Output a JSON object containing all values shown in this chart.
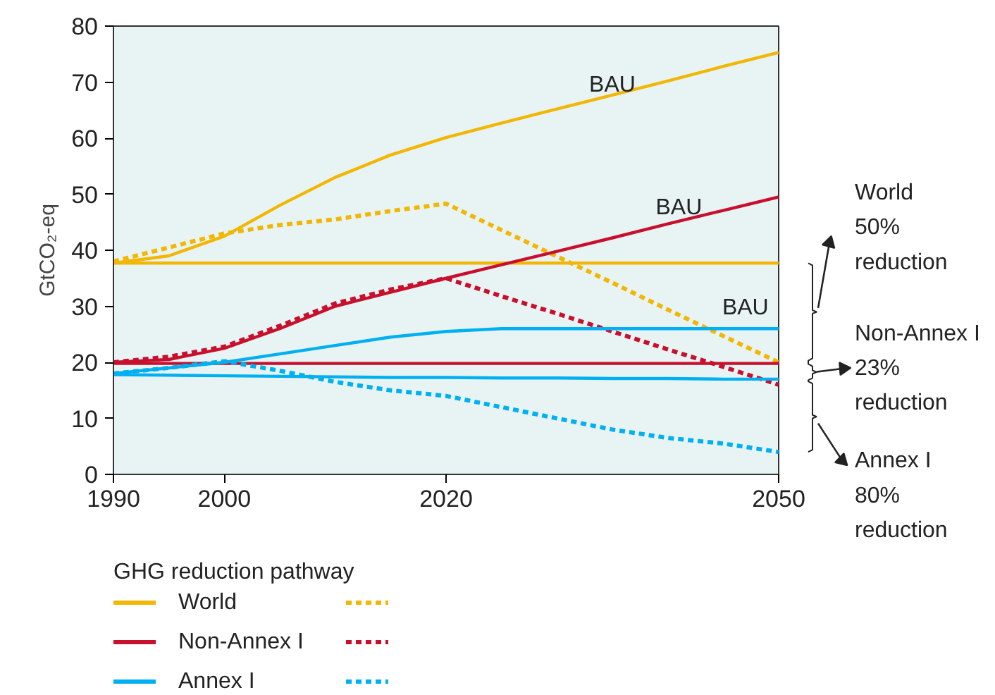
{
  "chart_data": {
    "type": "line",
    "ylabel": "GtCO₂-eq",
    "legend_title": "GHG reduction pathway",
    "legend": "bottom",
    "grid": false,
    "x": [
      1990,
      1995,
      2000,
      2005,
      2010,
      2015,
      2020,
      2025,
      2030,
      2035,
      2040,
      2045,
      2050
    ],
    "xlim": [
      1990,
      2050
    ],
    "xticks": [
      1990,
      2000,
      2020,
      2050
    ],
    "ylim": [
      0,
      80
    ],
    "yticks": [
      0,
      10,
      20,
      30,
      40,
      50,
      60,
      70,
      80
    ],
    "series": [
      {
        "name": "World",
        "color": "#f2b705",
        "line_style": "solid",
        "values": [
          37.7,
          39,
          42.5,
          48,
          53,
          57,
          60.1,
          62.7,
          65.2,
          67.7,
          70.2,
          72.8,
          75.3
        ]
      },
      {
        "color": "#f2b705",
        "line_style": "dashed",
        "values": [
          38,
          40.5,
          43,
          44.5,
          45.5,
          47,
          48.3,
          43.6,
          38.9,
          34.2,
          29.4,
          24.7,
          20
        ]
      },
      {
        "color": "#f2b705",
        "line_style": "solid",
        "values": [
          37.7,
          37.7,
          37.7,
          37.7,
          37.7,
          37.7,
          37.7,
          37.7,
          37.7,
          37.7,
          37.7,
          37.7,
          37.7
        ]
      },
      {
        "name": "Non-Annex I",
        "color": "#c8102e",
        "line_style": "solid",
        "values": [
          20,
          20.5,
          22.5,
          26,
          30,
          32.5,
          35,
          37.4,
          39.8,
          42.2,
          44.7,
          47.1,
          49.5
        ]
      },
      {
        "color": "#c8102e",
        "line_style": "dashed",
        "values": [
          20,
          21,
          22.8,
          26.5,
          30.5,
          33,
          35,
          31.8,
          28.7,
          25.5,
          22.3,
          19.2,
          16
        ]
      },
      {
        "color": "#c8102e",
        "line_style": "solid",
        "values": [
          19.8,
          19.8,
          19.8,
          19.8,
          19.8,
          19.8,
          19.8,
          19.8,
          19.8,
          19.8,
          19.8,
          19.8,
          19.8
        ]
      },
      {
        "name": "Annex I",
        "color": "#00b0f0",
        "line_style": "solid",
        "values": [
          18,
          19,
          20,
          21.5,
          23,
          24.5,
          25.5,
          26,
          26,
          26,
          26,
          26,
          26
        ]
      },
      {
        "color": "#00b0f0",
        "line_style": "dashed",
        "values": [
          18,
          19,
          20.2,
          18.5,
          16.5,
          15,
          14,
          12,
          10,
          8,
          6.5,
          5.5,
          4
        ]
      },
      {
        "color": "#00b0f0",
        "line_style": "solid",
        "values": [
          17.8,
          17.7,
          17.6,
          17.5,
          17.4,
          17.3,
          17.3,
          17.2,
          17.2,
          17.1,
          17.1,
          17,
          17
        ]
      }
    ],
    "annotations": [
      "BAU",
      "BAU",
      "BAU",
      "World\n50%\nreduction",
      "Non-Annex I\n23%\nreduction",
      "Annex I\n80%\nreduction"
    ]
  }
}
